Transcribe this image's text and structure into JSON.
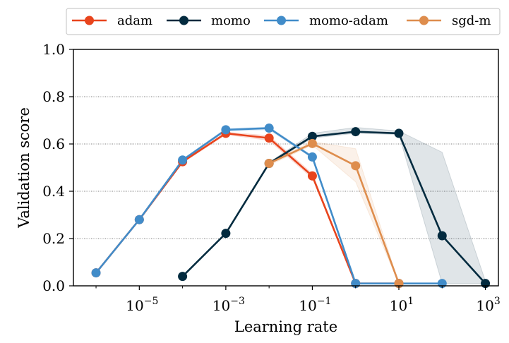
{
  "chart_data": {
    "type": "line",
    "xlabel": "Learning rate",
    "ylabel": "Validation score",
    "xscale": "log",
    "xlim": [
      3e-07,
      2000
    ],
    "ylim": [
      0.0,
      1.0
    ],
    "yticks": [
      "0.0",
      "0.2",
      "0.4",
      "0.6",
      "0.8",
      "1.0"
    ],
    "xticks": [
      {
        "base": "10",
        "exp": "−5",
        "value": 1e-05
      },
      {
        "base": "10",
        "exp": "−3",
        "value": 0.001
      },
      {
        "base": "10",
        "exp": "−1",
        "value": 0.1
      },
      {
        "base": "10",
        "exp": "1",
        "value": 10
      },
      {
        "base": "10",
        "exp": "3",
        "value": 1000
      }
    ],
    "grid": "horizontal dotted",
    "legend_position": "top",
    "series": [
      {
        "name": "adam",
        "color": "#e8441d",
        "x": [
          1e-06,
          1e-05,
          0.0001,
          0.001,
          0.01,
          0.1,
          1,
          10
        ],
        "y": [
          0.055,
          0.28,
          0.525,
          0.645,
          0.625,
          0.465,
          0.01,
          0.01
        ],
        "band_low": [
          0.055,
          0.28,
          0.52,
          0.64,
          0.615,
          0.455,
          0.01,
          0.01
        ],
        "band_high": [
          0.055,
          0.28,
          0.53,
          0.65,
          0.635,
          0.475,
          0.01,
          0.01
        ]
      },
      {
        "name": "momo",
        "color": "#032b3f",
        "x": [
          0.0001,
          0.001,
          0.01,
          0.1,
          1,
          10,
          100,
          1000
        ],
        "y": [
          0.04,
          0.222,
          0.518,
          0.632,
          0.652,
          0.645,
          0.212,
          0.01
        ],
        "band_low": [
          0.04,
          0.222,
          0.515,
          0.625,
          0.645,
          0.64,
          0.01,
          0.01
        ],
        "band_high": [
          0.04,
          0.222,
          0.522,
          0.645,
          0.67,
          0.655,
          0.565,
          0.02
        ]
      },
      {
        "name": "momo-adam",
        "color": "#418cc9",
        "x": [
          1e-06,
          1e-05,
          0.0001,
          0.001,
          0.01,
          0.1,
          1,
          10,
          100
        ],
        "y": [
          0.055,
          0.28,
          0.532,
          0.66,
          0.667,
          0.545,
          0.01,
          0.01,
          0.01
        ],
        "band_low": [
          0.055,
          0.28,
          0.53,
          0.655,
          0.66,
          0.54,
          0.01,
          0.01,
          0.01
        ],
        "band_high": [
          0.055,
          0.28,
          0.535,
          0.665,
          0.672,
          0.55,
          0.01,
          0.01,
          0.01
        ]
      },
      {
        "name": "sgd-m",
        "color": "#de8d4d",
        "x": [
          0.01,
          0.1,
          1,
          10
        ],
        "y": [
          0.518,
          0.602,
          0.508,
          0.01
        ],
        "band_low": [
          0.51,
          0.595,
          0.44,
          0.01
        ],
        "band_high": [
          0.525,
          0.61,
          0.58,
          0.01
        ]
      }
    ]
  }
}
